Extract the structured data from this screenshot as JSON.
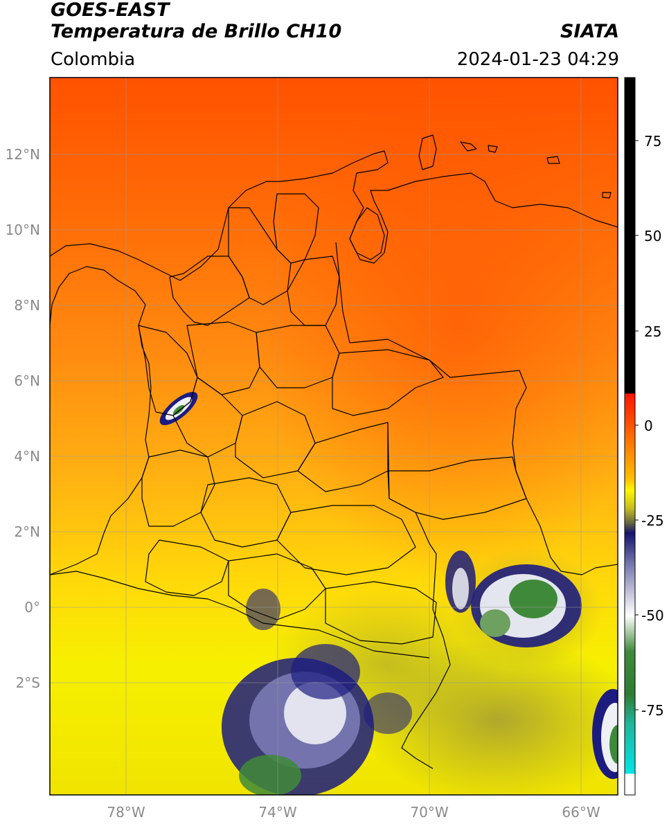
{
  "header": {
    "line1": "GOES-EAST",
    "line2": "Temperatura de Brillo CH10",
    "source": "SIATA",
    "region": "Colombia",
    "datetime": "2024-01-23 04:29"
  },
  "axes": {
    "lat_ticks": [
      "12°N",
      "10°N",
      "8°N",
      "6°N",
      "4°N",
      "2°N",
      "0°",
      "2°S"
    ],
    "lon_ticks": [
      "78°W",
      "74°W",
      "70°W",
      "66°W"
    ]
  },
  "colorbar": {
    "ticks": [
      "75",
      "50",
      "25",
      "0",
      "-25",
      "-50",
      "-75"
    ],
    "colors": {
      "black": "#000000",
      "red": "#ff1400",
      "orange": "#ff7a00",
      "yellow": "#fff600",
      "olive": "#9a9a2a",
      "navy": "#14146e",
      "white": "#ffffff",
      "green": "#2e7d32",
      "cyan": "#00e5e5"
    }
  },
  "map_colors": {
    "warm": "#ff5a0a",
    "mid": "#ff9a10",
    "cool": "#f5e800",
    "olive": "#b8b02a",
    "cloud_navy": "#1c1c80",
    "cloud_white": "#eef0f6",
    "cloud_green": "#3f8a3a"
  }
}
